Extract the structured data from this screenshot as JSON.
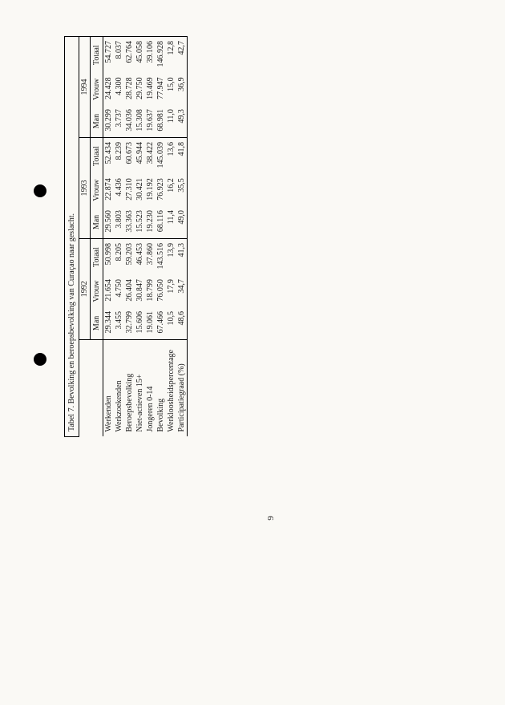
{
  "caption": "Tabel 7. Bevolking en beroepsbevolking van Curaçao naar geslacht.",
  "years": [
    "1992",
    "1993",
    "1994"
  ],
  "sub": [
    "Man",
    "Vrouw",
    "Totaal"
  ],
  "rows": [
    {
      "label": "Werkenden",
      "v": [
        "29.344",
        "21.654",
        "50.998",
        "29.560",
        "22.874",
        "52.434",
        "30.299",
        "24.428",
        "54.727"
      ]
    },
    {
      "label": "Werkzoekenden",
      "v": [
        "3.455",
        "4.750",
        "8.205",
        "3.803",
        "4.436",
        "8.239",
        "3.737",
        "4.300",
        "8.037"
      ]
    },
    {
      "label": "Beroepsbevolking",
      "v": [
        "32.799",
        "26.404",
        "59.203",
        "33.363",
        "27.310",
        "60.673",
        "34.036",
        "28.728",
        "62.764"
      ]
    },
    {
      "label": "Niet-actieven 15+",
      "v": [
        "15.606",
        "30.847",
        "46.453",
        "15.523",
        "30.421",
        "45.944",
        "15.308",
        "29.750",
        "45.058"
      ]
    },
    {
      "label": "Jongeren 0-14",
      "v": [
        "19.061",
        "18.799",
        "37.860",
        "19.230",
        "19.192",
        "38.422",
        "19.637",
        "19.469",
        "39.106"
      ]
    },
    {
      "label": "Bevolking",
      "v": [
        "67.466",
        "76.050",
        "143.516",
        "68.116",
        "76.923",
        "145.039",
        "68.981",
        "77.947",
        "146.928"
      ]
    },
    {
      "label": "Werkloosheidspercentage",
      "v": [
        "10,5",
        "17,9",
        "13,9",
        "11,4",
        "16,2",
        "13,6",
        "11,0",
        "15,0",
        "12,8"
      ]
    },
    {
      "label": "Participatiegraad (%)",
      "v": [
        "48,6",
        "34,7",
        "41,3",
        "49,0",
        "35,5",
        "41,8",
        "49,3",
        "36,9",
        "42,7"
      ]
    }
  ],
  "page_number": "9"
}
